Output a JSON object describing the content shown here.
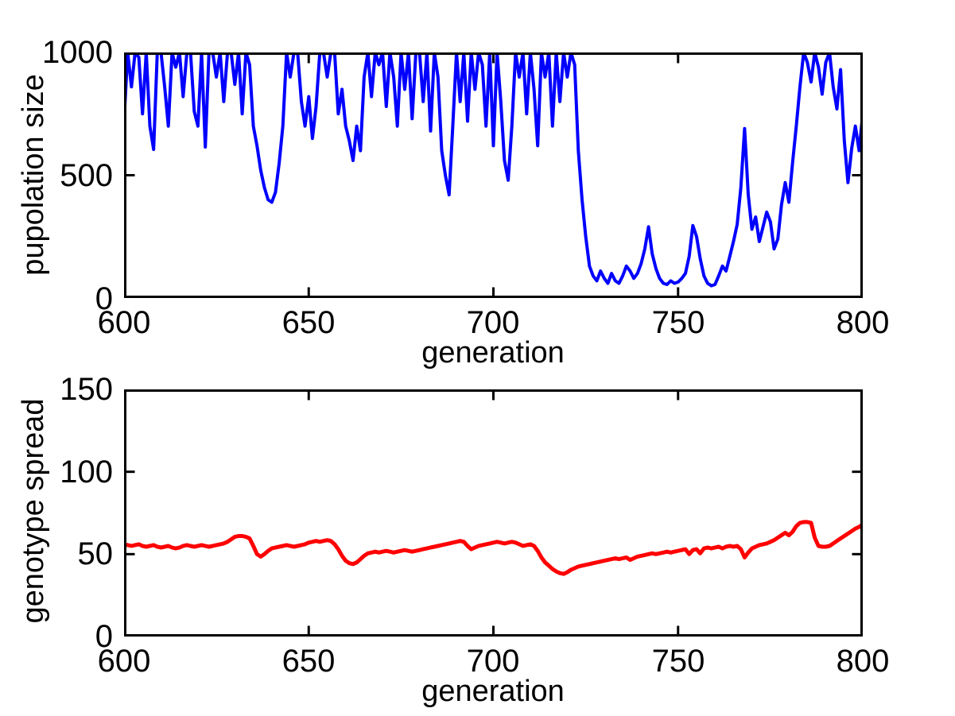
{
  "figure": {
    "background": "#ffffff",
    "axis_color": "#000000"
  },
  "chart_data": [
    {
      "type": "line",
      "title": "",
      "xlabel": "generation",
      "ylabel": "pupolation size",
      "xlim": [
        600,
        800
      ],
      "ylim": [
        0,
        1000
      ],
      "xticks": [
        600,
        650,
        700,
        750,
        800
      ],
      "xtick_labels": [
        "600",
        "650",
        "700",
        "750",
        "800"
      ],
      "yticks": [
        0,
        500,
        1000
      ],
      "ytick_labels": [
        "0",
        "500",
        "1000"
      ],
      "grid": false,
      "legend": null,
      "line_color": "#0000ff",
      "line_width": 4,
      "series": [
        {
          "name": "population size",
          "x_start": 600,
          "x_step": 1,
          "values": [
            720,
            1000,
            860,
            1000,
            980,
            750,
            1000,
            700,
            605,
            1000,
            1000,
            860,
            700,
            1000,
            940,
            1000,
            820,
            1000,
            1000,
            760,
            700,
            1000,
            615,
            1000,
            1000,
            900,
            1000,
            800,
            1000,
            1000,
            870,
            1000,
            750,
            1000,
            950,
            700,
            620,
            520,
            450,
            400,
            390,
            430,
            550,
            700,
            1000,
            900,
            1000,
            1000,
            800,
            700,
            820,
            650,
            780,
            1000,
            1000,
            900,
            1000,
            1000,
            750,
            850,
            700,
            640,
            560,
            700,
            600,
            900,
            1000,
            820,
            1000,
            950,
            1000,
            780,
            1000,
            900,
            700,
            1000,
            850,
            1000,
            730,
            1000,
            1000,
            800,
            1000,
            680,
            1000,
            900,
            600,
            500,
            420,
            700,
            1000,
            800,
            1000,
            720,
            1000,
            850,
            1000,
            950,
            700,
            1000,
            620,
            1000,
            800,
            560,
            480,
            700,
            1000,
            900,
            1000,
            750,
            1000,
            850,
            620,
            1000,
            900,
            1000,
            700,
            1000,
            800,
            1000,
            900,
            1000,
            950,
            600,
            400,
            250,
            130,
            90,
            70,
            110,
            80,
            60,
            100,
            70,
            60,
            90,
            130,
            110,
            80,
            100,
            140,
            200,
            290,
            180,
            120,
            80,
            60,
            55,
            70,
            60,
            65,
            80,
            100,
            170,
            295,
            250,
            160,
            90,
            60,
            50,
            55,
            90,
            130,
            110,
            170,
            230,
            300,
            450,
            690,
            420,
            280,
            330,
            230,
            290,
            350,
            310,
            200,
            240,
            380,
            470,
            390,
            550,
            700,
            860,
            1000,
            960,
            880,
            1000,
            940,
            830,
            960,
            1000,
            860,
            770,
            930,
            640,
            470,
            610,
            700,
            600,
            750
          ]
        }
      ]
    },
    {
      "type": "line",
      "title": "",
      "xlabel": "generation",
      "ylabel": "genotype spread",
      "xlim": [
        600,
        800
      ],
      "ylim": [
        0,
        150
      ],
      "xticks": [
        600,
        650,
        700,
        750,
        800
      ],
      "xtick_labels": [
        "600",
        "650",
        "700",
        "750",
        "800"
      ],
      "yticks": [
        0,
        50,
        100,
        150
      ],
      "ytick_labels": [
        "0",
        "50",
        "100",
        "150"
      ],
      "grid": false,
      "legend": null,
      "line_color": "#ff0000",
      "line_width": 5,
      "series": [
        {
          "name": "genotype spread",
          "x_start": 600,
          "x_step": 1,
          "values": [
            56,
            55.5,
            55,
            55.5,
            56,
            55,
            54.5,
            55,
            55.5,
            54.5,
            54,
            54.5,
            55,
            54,
            53.5,
            54,
            55,
            55.5,
            55,
            54.5,
            55,
            55.5,
            55,
            54.5,
            55,
            55.5,
            56,
            56.5,
            57.5,
            59,
            60.5,
            61,
            61,
            60.5,
            59.5,
            55,
            50,
            48.5,
            50,
            52,
            53.5,
            54,
            54.5,
            55,
            55.5,
            55,
            54.5,
            55,
            55.5,
            56,
            57,
            57.5,
            58,
            57.5,
            58,
            58.5,
            58,
            56,
            53,
            49,
            46,
            44.5,
            44,
            45,
            47,
            49,
            50.5,
            51,
            51.5,
            51,
            51.5,
            52,
            51.5,
            51,
            51.5,
            52,
            52.5,
            52,
            51.5,
            52,
            52.5,
            53,
            53.5,
            54,
            54.5,
            55,
            55.5,
            56,
            56.5,
            57,
            57.5,
            58,
            57.5,
            55,
            53,
            54,
            55,
            55.5,
            56,
            56.5,
            57,
            57.5,
            57,
            56.5,
            57,
            57.5,
            57,
            56,
            55,
            55.5,
            56,
            55,
            52,
            48,
            45,
            43,
            41,
            39.5,
            38.5,
            38,
            39,
            40.5,
            41.5,
            42.5,
            43,
            43.5,
            44,
            44.5,
            45,
            45.5,
            46,
            46.5,
            47,
            47.5,
            47,
            47.5,
            48,
            46.5,
            47.5,
            48.5,
            49,
            49.5,
            50,
            50.5,
            50,
            50.5,
            51,
            51.5,
            51,
            51.5,
            52,
            52.5,
            53,
            50,
            52.5,
            53,
            50.5,
            53.5,
            54,
            53.5,
            54,
            54.5,
            53.5,
            54.5,
            55,
            54.5,
            55,
            53,
            48,
            51,
            53.5,
            54.5,
            55.5,
            56,
            56.5,
            57.5,
            58.5,
            60,
            61.5,
            63,
            61.5,
            63.5,
            67,
            69,
            69.5,
            69.5,
            69,
            60,
            55,
            54.5,
            54.5,
            55,
            56.5,
            58,
            59.5,
            61,
            62.5,
            64,
            65.5,
            66.5,
            68
          ]
        }
      ]
    }
  ]
}
